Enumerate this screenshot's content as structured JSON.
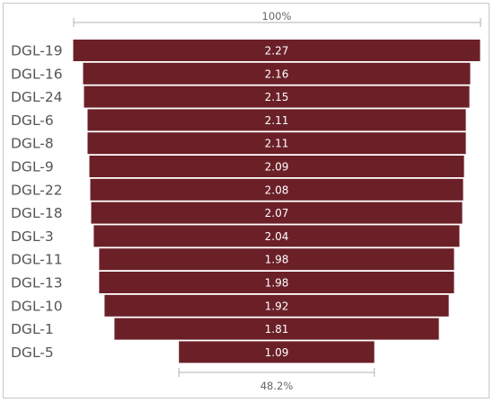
{
  "chart_data": {
    "type": "bar",
    "subtype": "funnel",
    "categories": [
      "DGL-19",
      "DGL-16",
      "DGL-24",
      "DGL-6",
      "DGL-8",
      "DGL-9",
      "DGL-22",
      "DGL-18",
      "DGL-3",
      "DGL-11",
      "DGL-13",
      "DGL-10",
      "DGL-1",
      "DGL-5"
    ],
    "values": [
      2.27,
      2.16,
      2.15,
      2.11,
      2.11,
      2.09,
      2.08,
      2.07,
      2.04,
      1.98,
      1.98,
      1.92,
      1.81,
      1.09
    ],
    "value_labels": [
      "2.27",
      "2.16",
      "2.15",
      "2.11",
      "2.11",
      "2.09",
      "2.08",
      "2.07",
      "2.04",
      "1.98",
      "1.98",
      "1.92",
      "1.81",
      "1.09"
    ],
    "top_percent_label": "100%",
    "bottom_percent_label": "48.2%",
    "bar_color": "#6b2028",
    "title": "",
    "xlabel": "",
    "ylabel": ""
  }
}
